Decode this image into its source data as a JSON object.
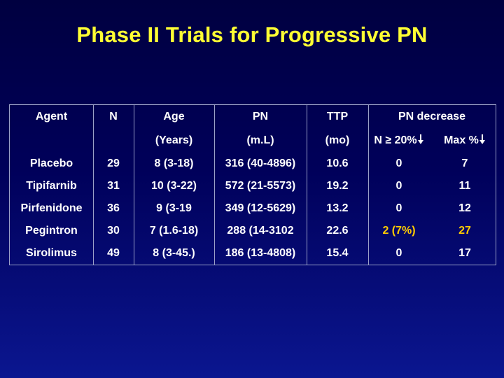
{
  "title": "Phase II Trials for Progressive PN",
  "table": {
    "headers": {
      "agent": "Agent",
      "n": "N",
      "age": "Age",
      "age_unit": "(Years)",
      "pn": "PN",
      "pn_unit": "(m.L)",
      "ttp": "TTP",
      "ttp_unit": "(mo)",
      "pn_decrease": "PN decrease",
      "n_ge_20": "N ≥ 20%",
      "max_pct": "Max %"
    },
    "rows": [
      {
        "agent": "Placebo",
        "n": "29",
        "age": "8 (3-18)",
        "pn": "316 (40-4896)",
        "ttp": "10.6",
        "n_ge_20": "0",
        "max_pct": "7"
      },
      {
        "agent": "Tipifarnib",
        "n": "31",
        "age": "10 (3-22)",
        "pn": "572 (21-5573)",
        "ttp": "19.2",
        "n_ge_20": "0",
        "max_pct": "11"
      },
      {
        "agent": "Pirfenidone",
        "n": "36",
        "age": "9 (3-19",
        "pn": "349 (12-5629)",
        "ttp": "13.2",
        "n_ge_20": "0",
        "max_pct": "12"
      },
      {
        "agent": "Pegintron",
        "n": "30",
        "age": "7 (1.6-18)",
        "pn": "288 (14-3102",
        "ttp": "22.6",
        "n_ge_20": "2 (7%)",
        "max_pct": "27"
      },
      {
        "agent": "Sirolimus",
        "n": "49",
        "age": "8 (3-45.)",
        "pn": "186 (13-4808)",
        "ttp": "15.4",
        "n_ge_20": "0",
        "max_pct": "17"
      }
    ],
    "highlight_color": "#ffcc00"
  },
  "colors": {
    "title": "#ffff33",
    "text": "#ffffff",
    "background": "#000050"
  },
  "icons": [
    "down-arrow-icon"
  ]
}
